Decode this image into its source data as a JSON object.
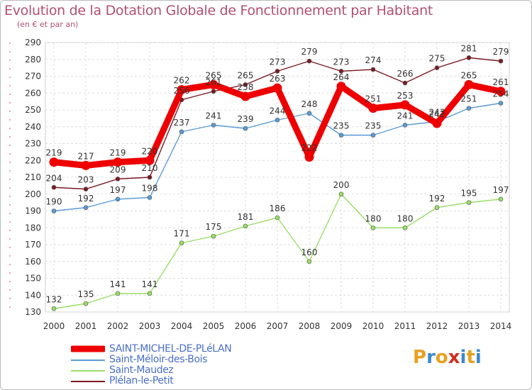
{
  "chart_data": {
    "type": "line",
    "title": "Evolution de la Dotation Globale de Fonctionnement par Habitant",
    "subtitle": "(en € et par an)",
    "x": [
      "2000",
      "2001",
      "2002",
      "2003",
      "2004",
      "2005",
      "2006",
      "2007",
      "2008",
      "2009",
      "2010",
      "2011",
      "2012",
      "2013",
      "2014"
    ],
    "ylim": [
      130,
      290
    ],
    "yticks": [
      130,
      140,
      150,
      160,
      170,
      180,
      190,
      200,
      210,
      220,
      230,
      240,
      250,
      260,
      270,
      280,
      290
    ],
    "grid": true,
    "series": [
      {
        "name": "SAINT-MICHEL-DE-PLéLAN",
        "color": "#ee0000",
        "values": [
          219,
          217,
          219,
          220,
          262,
          265,
          258,
          263,
          222,
          264,
          251,
          253,
          242,
          265,
          261
        ]
      },
      {
        "name": "Saint-Méloir-des-Bois",
        "color": "#5b9bd5",
        "values": [
          190,
          192,
          197,
          198,
          237,
          241,
          239,
          244,
          248,
          235,
          235,
          241,
          243,
          251,
          254
        ]
      },
      {
        "name": "Saint-Maudez",
        "color": "#99dd66",
        "values": [
          132,
          135,
          141,
          141,
          171,
          175,
          181,
          186,
          160,
          200,
          180,
          180,
          192,
          195,
          197
        ]
      },
      {
        "name": "Plélan-le-Petit",
        "color": "#7a1a22",
        "values": [
          204,
          203,
          209,
          210,
          256,
          261,
          265,
          273,
          279,
          273,
          274,
          266,
          275,
          281,
          279
        ]
      }
    ]
  },
  "legend": {
    "items": [
      {
        "label": "SAINT-MICHEL-DE-PLéLAN"
      },
      {
        "label": "Saint-Méloir-des-Bois"
      },
      {
        "label": "Saint-Maudez"
      },
      {
        "label": "Plélan-le-Petit"
      }
    ]
  },
  "brand": {
    "logo_letters": [
      "P",
      "r",
      "o",
      "x",
      "i",
      "t",
      "i"
    ],
    "logo_colors": [
      "#e8a020",
      "#3a8ad0",
      "#e8a020",
      "#d03020",
      "#3a8ad0",
      "#e8a020",
      "#3a8ad0"
    ]
  }
}
